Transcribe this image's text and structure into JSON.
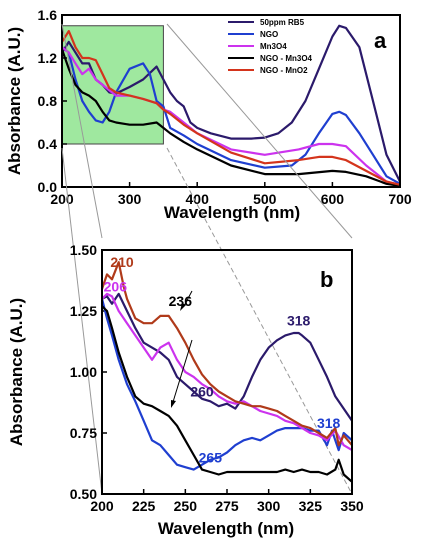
{
  "chart_data": [
    {
      "panel": "a",
      "type": "line",
      "xlabel": "Wavelength (nm)",
      "ylabel": "Absorbance (A.U.)",
      "xlim": [
        200,
        700
      ],
      "ylim": [
        0.0,
        1.6
      ],
      "xticks": [
        "200",
        "300",
        "400",
        "500",
        "600",
        "700"
      ],
      "yticks": [
        "0.0",
        "0.4",
        "0.8",
        "1.2",
        "1.6"
      ],
      "legend_position": "top-right",
      "inset_highlight": {
        "x": [
          200,
          350
        ],
        "y": [
          0.4,
          1.5
        ],
        "color": "#7fe07f"
      },
      "series": [
        {
          "name": "50ppm RB5",
          "color": "#2b1a6b",
          "x": [
            200,
            210,
            220,
            230,
            240,
            250,
            260,
            270,
            280,
            300,
            320,
            340,
            350,
            360,
            370,
            380,
            390,
            400,
            420,
            450,
            480,
            500,
            520,
            540,
            560,
            580,
            600,
            610,
            620,
            640,
            660,
            680,
            700
          ],
          "y": [
            1.25,
            1.35,
            1.25,
            1.15,
            1.15,
            1.0,
            0.95,
            0.88,
            0.87,
            0.93,
            1.0,
            1.12,
            1.0,
            0.88,
            0.8,
            0.75,
            0.6,
            0.55,
            0.5,
            0.45,
            0.45,
            0.46,
            0.5,
            0.6,
            0.8,
            1.1,
            1.4,
            1.5,
            1.48,
            1.3,
            0.8,
            0.3,
            0.05
          ]
        },
        {
          "name": "NGO",
          "color": "#1f3fd0",
          "x": [
            200,
            210,
            220,
            230,
            240,
            250,
            260,
            270,
            280,
            300,
            320,
            330,
            340,
            350,
            360,
            380,
            400,
            450,
            500,
            540,
            560,
            580,
            600,
            610,
            620,
            640,
            660,
            680,
            700
          ],
          "y": [
            1.3,
            1.25,
            1.0,
            0.8,
            0.7,
            0.62,
            0.6,
            0.7,
            0.88,
            1.1,
            1.15,
            1.05,
            0.8,
            0.75,
            0.55,
            0.48,
            0.4,
            0.25,
            0.18,
            0.2,
            0.3,
            0.5,
            0.68,
            0.7,
            0.67,
            0.5,
            0.3,
            0.1,
            0.03
          ]
        },
        {
          "name": "Mn3O4",
          "color": "#cc33ee",
          "x": [
            200,
            210,
            220,
            230,
            240,
            250,
            260,
            270,
            280,
            300,
            320,
            340,
            350,
            360,
            380,
            400,
            450,
            500,
            550,
            580,
            600,
            620,
            650,
            680,
            700
          ],
          "y": [
            1.3,
            1.25,
            1.15,
            1.05,
            1.1,
            1.0,
            0.95,
            0.9,
            0.85,
            0.85,
            0.82,
            0.78,
            0.72,
            0.7,
            0.6,
            0.5,
            0.35,
            0.3,
            0.35,
            0.4,
            0.4,
            0.38,
            0.2,
            0.05,
            0.02
          ]
        },
        {
          "name": "NGO - Mn3O4",
          "color": "#000000",
          "x": [
            200,
            210,
            220,
            230,
            240,
            250,
            260,
            270,
            280,
            300,
            320,
            340,
            350,
            360,
            380,
            400,
            450,
            500,
            550,
            600,
            620,
            650,
            680,
            700
          ],
          "y": [
            1.28,
            1.1,
            0.95,
            0.88,
            0.85,
            0.8,
            0.7,
            0.62,
            0.6,
            0.58,
            0.58,
            0.6,
            0.55,
            0.5,
            0.42,
            0.35,
            0.2,
            0.12,
            0.12,
            0.15,
            0.14,
            0.1,
            0.03,
            0.01
          ]
        },
        {
          "name": "NGO - MnO2",
          "color": "#d4341c",
          "x": [
            200,
            210,
            220,
            230,
            240,
            250,
            260,
            270,
            280,
            300,
            320,
            340,
            350,
            360,
            380,
            400,
            450,
            500,
            550,
            580,
            600,
            620,
            650,
            680,
            700
          ],
          "y": [
            1.35,
            1.45,
            1.3,
            1.2,
            1.2,
            1.18,
            1.05,
            0.92,
            0.88,
            0.85,
            0.82,
            0.78,
            0.72,
            0.68,
            0.58,
            0.5,
            0.32,
            0.22,
            0.25,
            0.28,
            0.28,
            0.25,
            0.15,
            0.05,
            0.02
          ]
        }
      ]
    },
    {
      "panel": "b",
      "type": "line",
      "xlabel": "Wavelength (nm)",
      "ylabel": "Absorbance (A.U.)",
      "xlim": [
        200,
        350
      ],
      "ylim": [
        0.5,
        1.5
      ],
      "xticks": [
        "200",
        "225",
        "250",
        "275",
        "300",
        "325",
        "350"
      ],
      "yticks": [
        "0.50",
        "0.75",
        "1.00",
        "1.25",
        "1.50"
      ],
      "annotations": [
        {
          "text": "210",
          "x": 212,
          "y": 1.43,
          "color": "#b03a1a"
        },
        {
          "text": "206",
          "x": 208,
          "y": 1.33,
          "color": "#cc33ee"
        },
        {
          "text": "236",
          "x": 247,
          "y": 1.27,
          "color": "#000000"
        },
        {
          "text": "318",
          "x": 318,
          "y": 1.19,
          "color": "#2b1a6b"
        },
        {
          "text": "260",
          "x": 260,
          "y": 0.9,
          "color": "#2b1a6b"
        },
        {
          "text": "318",
          "x": 336,
          "y": 0.77,
          "color": "#1f3fd0"
        },
        {
          "text": "265",
          "x": 265,
          "y": 0.63,
          "color": "#1f3fd0"
        }
      ],
      "series": [
        {
          "name": "50ppm RB5",
          "color": "#2b1a6b",
          "x": [
            200,
            203,
            206,
            210,
            215,
            220,
            225,
            230,
            235,
            240,
            245,
            250,
            255,
            260,
            265,
            270,
            275,
            280,
            285,
            290,
            295,
            300,
            305,
            310,
            315,
            318,
            320,
            325,
            330,
            335,
            340,
            345,
            350
          ],
          "y": [
            1.3,
            1.31,
            1.28,
            1.32,
            1.25,
            1.18,
            1.12,
            1.1,
            1.08,
            1.05,
            0.98,
            0.95,
            0.92,
            0.89,
            0.88,
            0.86,
            0.87,
            0.85,
            0.9,
            0.98,
            1.05,
            1.1,
            1.13,
            1.15,
            1.16,
            1.16,
            1.15,
            1.12,
            1.05,
            0.98,
            0.9,
            0.85,
            0.8
          ]
        },
        {
          "name": "NGO",
          "color": "#1f3fd0",
          "x": [
            200,
            203,
            206,
            210,
            215,
            220,
            225,
            230,
            235,
            240,
            245,
            250,
            255,
            260,
            265,
            270,
            275,
            280,
            285,
            290,
            295,
            300,
            305,
            310,
            315,
            320,
            325,
            330,
            335,
            338,
            340,
            342,
            345,
            350
          ],
          "y": [
            1.3,
            1.22,
            1.15,
            1.05,
            0.95,
            0.88,
            0.8,
            0.72,
            0.7,
            0.66,
            0.62,
            0.61,
            0.6,
            0.62,
            0.64,
            0.65,
            0.67,
            0.7,
            0.72,
            0.73,
            0.72,
            0.74,
            0.76,
            0.77,
            0.77,
            0.77,
            0.76,
            0.76,
            0.7,
            0.76,
            0.72,
            0.68,
            0.75,
            0.72
          ]
        },
        {
          "name": "Mn3O4",
          "color": "#cc33ee",
          "x": [
            200,
            203,
            206,
            210,
            215,
            220,
            225,
            230,
            235,
            240,
            245,
            250,
            255,
            260,
            265,
            270,
            275,
            280,
            285,
            290,
            295,
            300,
            305,
            310,
            315,
            320,
            325,
            330,
            335,
            340,
            345,
            350
          ],
          "y": [
            1.3,
            1.32,
            1.31,
            1.25,
            1.2,
            1.15,
            1.1,
            1.05,
            1.1,
            1.12,
            1.05,
            1.0,
            0.98,
            0.95,
            0.93,
            0.9,
            0.88,
            0.87,
            0.88,
            0.86,
            0.84,
            0.83,
            0.82,
            0.8,
            0.79,
            0.77,
            0.75,
            0.74,
            0.72,
            0.76,
            0.7,
            0.68
          ]
        },
        {
          "name": "NGO - Mn3O4",
          "color": "#000000",
          "x": [
            200,
            203,
            206,
            210,
            215,
            220,
            225,
            230,
            235,
            240,
            245,
            250,
            255,
            260,
            265,
            270,
            275,
            280,
            285,
            290,
            295,
            300,
            305,
            310,
            315,
            320,
            325,
            330,
            335,
            340,
            342,
            345,
            350
          ],
          "y": [
            1.27,
            1.25,
            1.18,
            1.08,
            0.98,
            0.9,
            0.87,
            0.86,
            0.84,
            0.82,
            0.78,
            0.72,
            0.66,
            0.6,
            0.59,
            0.58,
            0.59,
            0.59,
            0.59,
            0.59,
            0.59,
            0.59,
            0.59,
            0.6,
            0.59,
            0.6,
            0.59,
            0.59,
            0.58,
            0.6,
            0.64,
            0.58,
            0.55
          ]
        },
        {
          "name": "NGO - MnO2",
          "color": "#b03a1a",
          "x": [
            200,
            203,
            206,
            210,
            213,
            215,
            220,
            225,
            230,
            235,
            240,
            245,
            250,
            255,
            260,
            265,
            270,
            275,
            280,
            285,
            290,
            295,
            300,
            305,
            310,
            315,
            320,
            325,
            330,
            335,
            340,
            342,
            345,
            350
          ],
          "y": [
            1.34,
            1.4,
            1.38,
            1.45,
            1.35,
            1.3,
            1.22,
            1.2,
            1.2,
            1.23,
            1.23,
            1.18,
            1.12,
            1.05,
            0.99,
            0.95,
            0.92,
            0.9,
            0.88,
            0.87,
            0.86,
            0.86,
            0.85,
            0.84,
            0.82,
            0.8,
            0.78,
            0.77,
            0.75,
            0.73,
            0.77,
            0.7,
            0.74,
            0.7
          ]
        }
      ]
    }
  ]
}
